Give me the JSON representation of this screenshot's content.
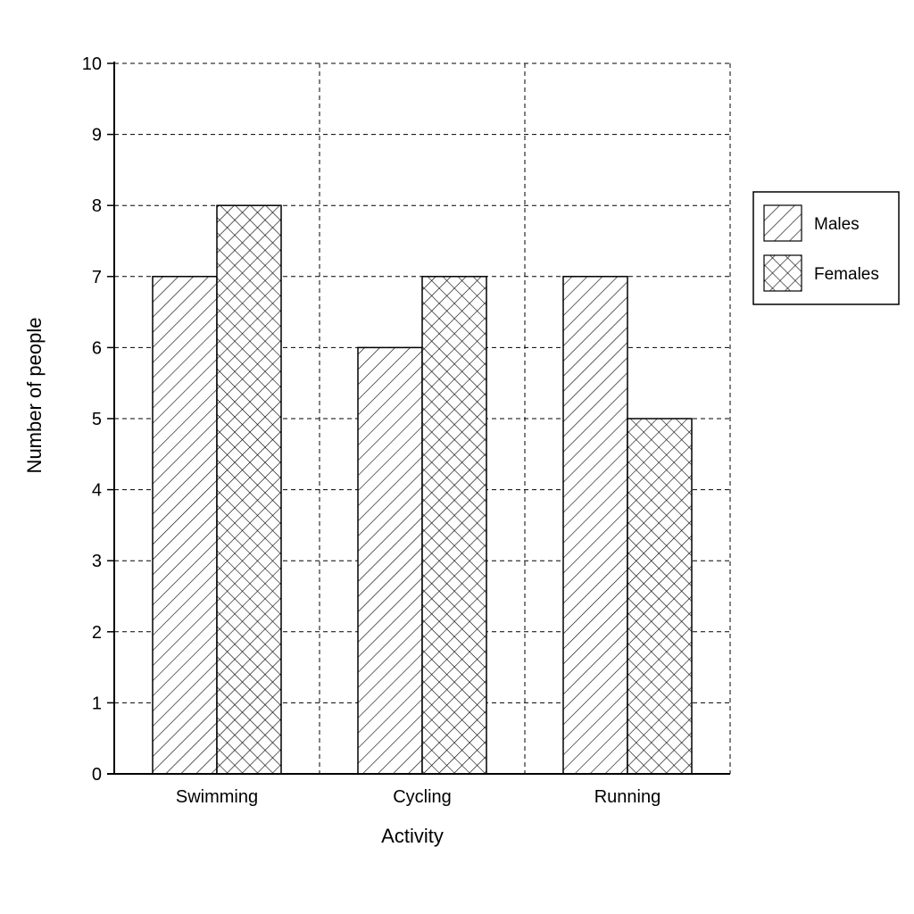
{
  "chart_data": {
    "type": "bar",
    "categories": [
      "Swimming",
      "Cycling",
      "Running"
    ],
    "series": [
      {
        "name": "Males",
        "values": [
          7,
          6,
          7
        ],
        "pattern": "diagonal-hatch"
      },
      {
        "name": "Females",
        "values": [
          8,
          7,
          5
        ],
        "pattern": "cross-hatch"
      }
    ],
    "xlabel": "Activity",
    "ylabel": "Number of people",
    "ylim": [
      0,
      10
    ],
    "yticks": [
      0,
      1,
      2,
      3,
      4,
      5,
      6,
      7,
      8,
      9,
      10
    ],
    "grid": true,
    "legend_position": "right",
    "colors": {
      "bar_fill": "#ffffff",
      "stroke": "#000000"
    }
  }
}
